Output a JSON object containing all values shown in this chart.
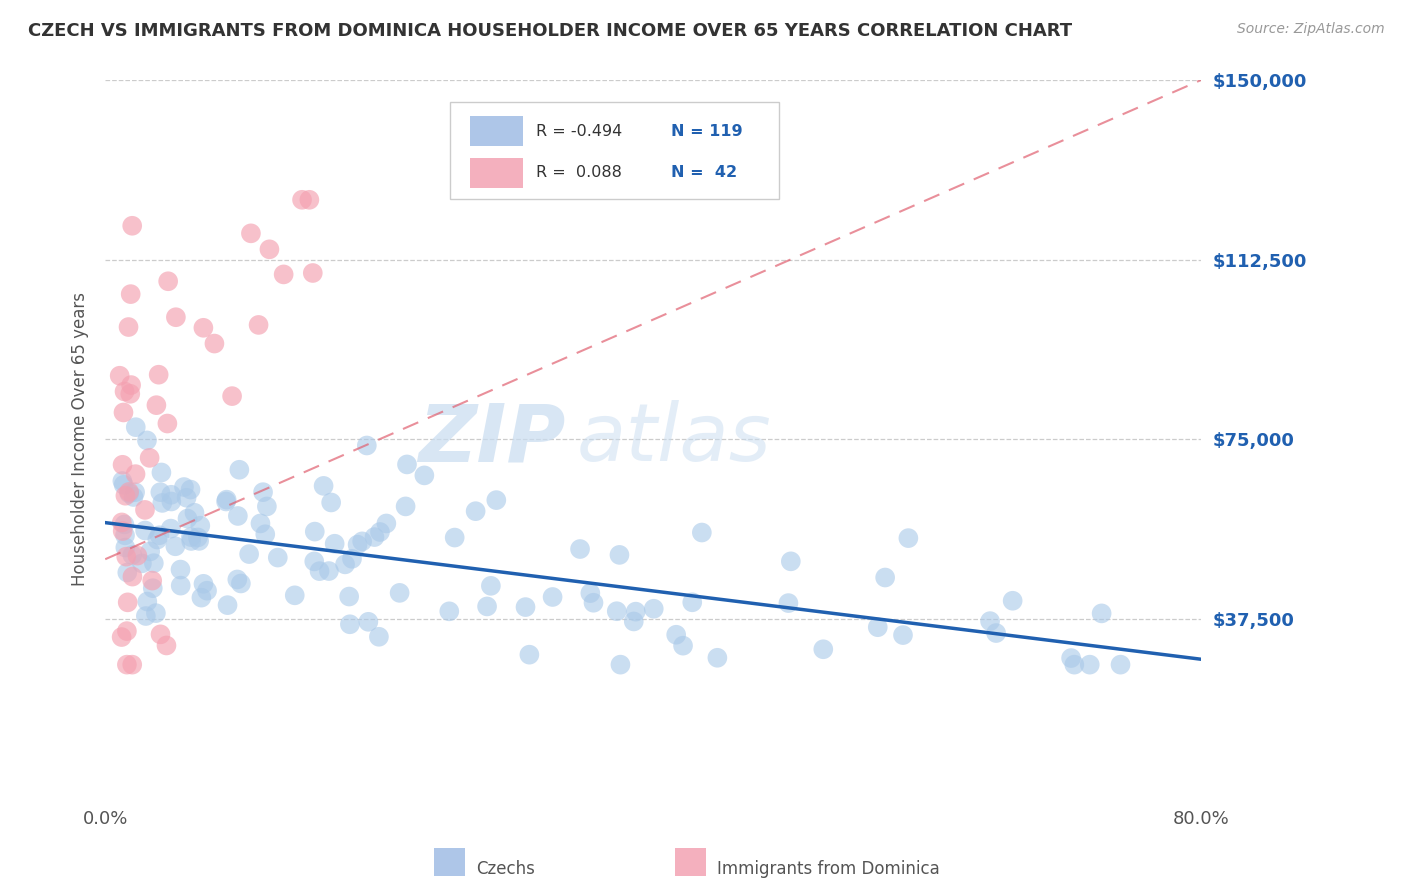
{
  "title": "CZECH VS IMMIGRANTS FROM DOMINICA HOUSEHOLDER INCOME OVER 65 YEARS CORRELATION CHART",
  "source": "Source: ZipAtlas.com",
  "ylabel": "Householder Income Over 65 years",
  "xlim": [
    0.0,
    0.8
  ],
  "ylim": [
    0,
    150000
  ],
  "ytick_labels": [
    "$37,500",
    "$75,000",
    "$112,500",
    "$150,000"
  ],
  "ytick_values": [
    37500,
    75000,
    112500,
    150000
  ],
  "watermark_zip": "ZIP",
  "watermark_atlas": "atlas",
  "czech_color": "#a8c8e8",
  "dominica_color": "#f4a0b0",
  "czech_line_color": "#2060b0",
  "dominica_line_color": "#e06070",
  "background_color": "#ffffff",
  "title_color": "#333333",
  "ylabel_color": "#555555",
  "ytick_color": "#2060b0",
  "legend_box_color": "#aec6e8",
  "legend_pink_color": "#f4b0be"
}
